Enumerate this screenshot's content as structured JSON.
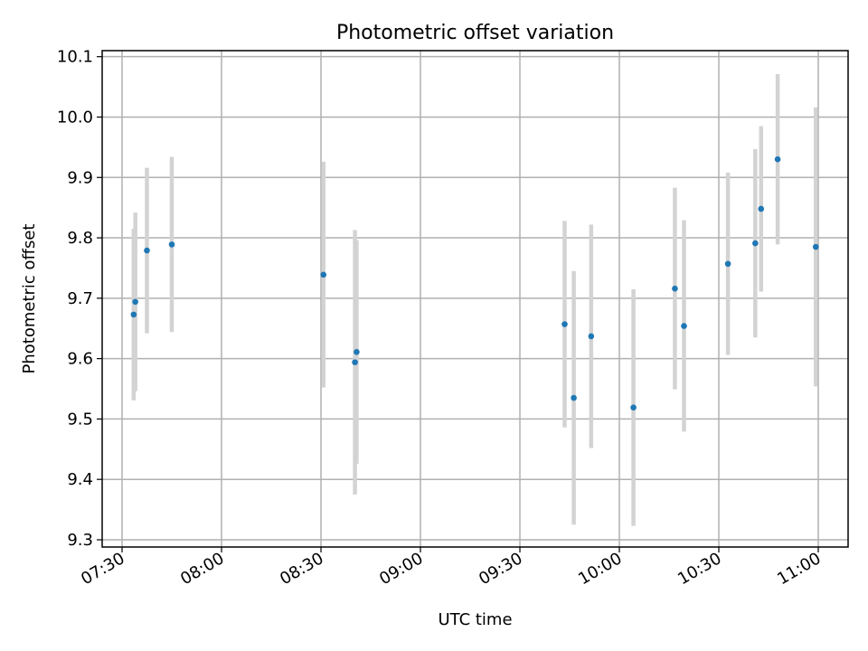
{
  "chart_data": {
    "type": "scatter",
    "title": "Photometric offset variation",
    "xlabel": "UTC time",
    "ylabel": "Photometric offset",
    "grid": true,
    "xlim": [
      "07:24",
      "11:09"
    ],
    "ylim": [
      9.288,
      10.11
    ],
    "x_ticks": [
      "07:30",
      "08:00",
      "08:30",
      "09:00",
      "09:30",
      "10:00",
      "10:30",
      "11:00"
    ],
    "y_ticks": [
      "9.3",
      "9.4",
      "9.5",
      "9.6",
      "9.7",
      "9.8",
      "9.9",
      "10.0",
      "10.1"
    ],
    "colors": {
      "points": "#1f77b4",
      "errorbars": "#d3d3d3",
      "grid": "#b0b0b0"
    },
    "points": [
      {
        "x": "07:33:30",
        "y": 9.673,
        "yerr": 0.142
      },
      {
        "x": "07:34:00",
        "y": 9.694,
        "yerr": 0.148
      },
      {
        "x": "07:37:30",
        "y": 9.779,
        "yerr": 0.137
      },
      {
        "x": "07:45:00",
        "y": 9.789,
        "yerr": 0.145
      },
      {
        "x": "08:30:45",
        "y": 9.739,
        "yerr": 0.187
      },
      {
        "x": "08:40:15",
        "y": 9.594,
        "yerr": 0.219
      },
      {
        "x": "08:40:45",
        "y": 9.611,
        "yerr": 0.185
      },
      {
        "x": "09:43:30",
        "y": 9.657,
        "yerr": 0.171
      },
      {
        "x": "09:46:15",
        "y": 9.535,
        "yerr": 0.21
      },
      {
        "x": "09:51:30",
        "y": 9.637,
        "yerr": 0.185
      },
      {
        "x": "10:04:15",
        "y": 9.519,
        "yerr": 0.196
      },
      {
        "x": "10:16:45",
        "y": 9.716,
        "yerr": 0.167
      },
      {
        "x": "10:19:30",
        "y": 9.654,
        "yerr": 0.175
      },
      {
        "x": "10:32:45",
        "y": 9.757,
        "yerr": 0.151
      },
      {
        "x": "10:41:00",
        "y": 9.791,
        "yerr": 0.156
      },
      {
        "x": "10:42:45",
        "y": 9.848,
        "yerr": 0.137
      },
      {
        "x": "10:47:45",
        "y": 9.93,
        "yerr": 0.141
      },
      {
        "x": "10:59:15",
        "y": 9.785,
        "yerr": 0.231
      }
    ]
  }
}
